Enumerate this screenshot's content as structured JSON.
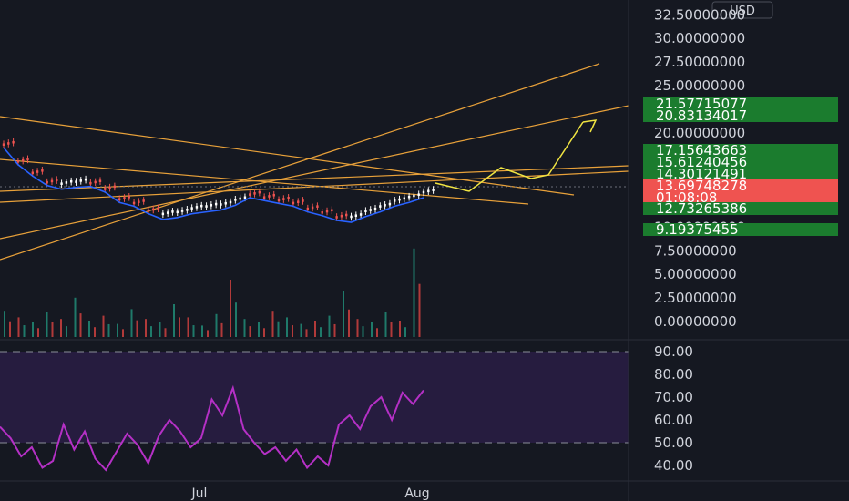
{
  "currency_label": "USD",
  "countdown": "01:08:08",
  "chart_data": {
    "type": "candlestick",
    "price_axis": {
      "ticks": [
        "32.50000000",
        "30.00000000",
        "27.50000000",
        "25.00000000",
        "20.00000000",
        "10.00000000",
        "7.50000000",
        "5.00000000",
        "2.50000000",
        "0.00000000"
      ]
    },
    "price_tags": [
      {
        "label": "21.57715077",
        "color": "#1b7c2e"
      },
      {
        "label": "20.83134017",
        "color": "#1b7c2e"
      },
      {
        "label": "17.15643663",
        "color": "#1b7c2e"
      },
      {
        "label": "15.61240456",
        "color": "#1b7c2e"
      },
      {
        "label": "14.30121491",
        "color": "#1b7c2e"
      },
      {
        "label": "13.69748278",
        "color": "#ef5350"
      },
      {
        "label": "12.73265386",
        "color": "#1b7c2e"
      },
      {
        "label": "9.19375455",
        "color": "#1b7c2e"
      }
    ],
    "last_price": 13.69748278,
    "price_trend": [
      19.0,
      17.2,
      16.0,
      15.0,
      14.6,
      14.8,
      14.9,
      14.3,
      13.2,
      12.8,
      12.0,
      11.4,
      11.6,
      12.0,
      12.2,
      12.4,
      12.9,
      13.7,
      13.4,
      13.1,
      12.8,
      12.2,
      11.8,
      11.3,
      11.1,
      11.7,
      12.2,
      12.8,
      13.2,
      13.7
    ],
    "volume": [
      1.6,
      1.2,
      0.9,
      1.5,
      1.1,
      2.4,
      1.0,
      1.3,
      0.8,
      1.7,
      1.1,
      0.9,
      2.0,
      1.2,
      0.7,
      1.4,
      3.5,
      1.1,
      0.9,
      1.6,
      1.2,
      0.8,
      1.0,
      1.3,
      2.8,
      1.1,
      0.9,
      1.5,
      1.0,
      5.4
    ],
    "rsi": {
      "ticks": [
        "90.00",
        "80.00",
        "70.00",
        "60.00",
        "50.00",
        "40.00"
      ],
      "overbought": 90,
      "midline": 50,
      "values": [
        57,
        52,
        44,
        48,
        39,
        42,
        58,
        47,
        55,
        43,
        38,
        46,
        54,
        49,
        41,
        53,
        60,
        55,
        48,
        52,
        69,
        62,
        74,
        56,
        50,
        45,
        48,
        42,
        47,
        39,
        44,
        40,
        58,
        62,
        56,
        66,
        70,
        60,
        72,
        67,
        73
      ]
    },
    "x_axis": {
      "ticks": [
        "Jul",
        "Aug"
      ]
    },
    "grid": false
  }
}
